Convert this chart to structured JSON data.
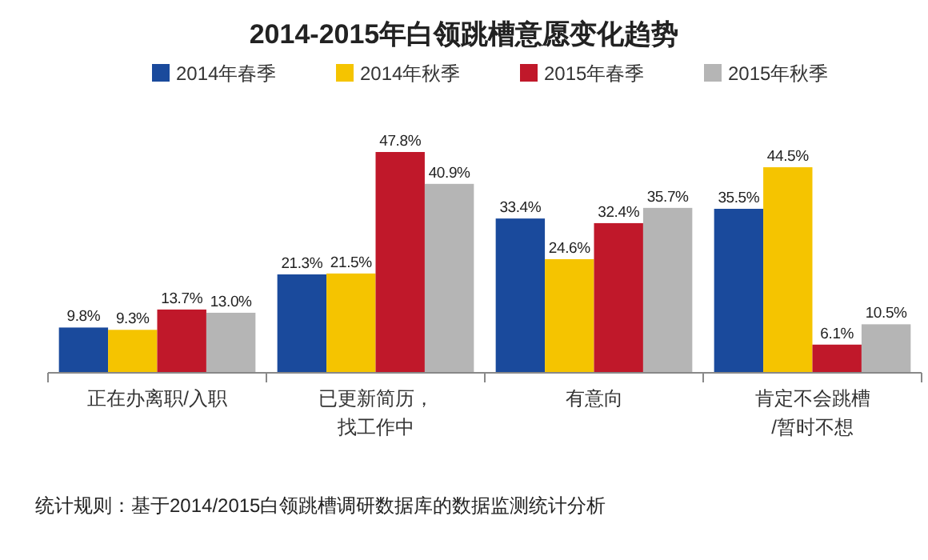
{
  "chart_data": {
    "type": "bar",
    "title": "2014-2015年白领跳槽意愿变化趋势",
    "categories": [
      "正在办离职/入职",
      "已更新简历，找工作中",
      "有意向",
      "肯定不会跳槽/暂时不想"
    ],
    "series": [
      {
        "name": "2014年春季",
        "color": "#1a4a9c",
        "values": [
          9.8,
          21.3,
          33.4,
          35.5
        ],
        "value_labels": [
          "9.8%",
          "21.3%",
          "33.4%",
          "35.5%"
        ]
      },
      {
        "name": "2014年秋季",
        "color": "#f5c400",
        "values": [
          9.3,
          21.5,
          24.6,
          44.5
        ],
        "value_labels": [
          "9.3%",
          "21.5%",
          "24.6%",
          "44.5%"
        ]
      },
      {
        "name": "2015年春季",
        "color": "#c0182a",
        "values": [
          13.7,
          47.8,
          32.4,
          6.1
        ],
        "value_labels": [
          "13.7%",
          "47.8%",
          "32.4%",
          "6.1%"
        ]
      },
      {
        "name": "2015年秋季",
        "color": "#b5b5b5",
        "values": [
          13.0,
          40.9,
          35.7,
          10.5
        ],
        "value_labels": [
          "13.0%",
          "40.9%",
          "35.7%",
          "10.5%"
        ]
      }
    ],
    "legend": "top",
    "annotations": [
      "统计规则：基于2014/2015白领跳槽调研数据库的数据监测统计分析"
    ]
  }
}
